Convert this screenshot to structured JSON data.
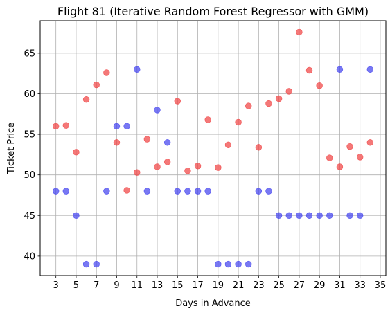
{
  "chart_data": {
    "type": "scatter",
    "title": "Flight 81 (Iterative Random Forest Regressor with GMM)",
    "xlabel": "Days in Advance",
    "ylabel": "Ticket Price",
    "xlim": [
      1.45,
      35.55
    ],
    "ylim": [
      37.6,
      69.0
    ],
    "xticks": [
      3,
      5,
      7,
      9,
      11,
      13,
      15,
      17,
      19,
      21,
      23,
      25,
      27,
      29,
      31,
      33,
      35
    ],
    "yticks": [
      40,
      45,
      50,
      55,
      60,
      65
    ],
    "grid": true,
    "series": [
      {
        "color": "#4444ee",
        "points": [
          [
            3,
            48
          ],
          [
            4,
            48
          ],
          [
            5,
            45
          ],
          [
            6,
            39
          ],
          [
            7,
            39
          ],
          [
            8,
            48
          ],
          [
            9,
            56
          ],
          [
            10,
            56
          ],
          [
            11,
            63
          ],
          [
            12,
            48
          ],
          [
            13,
            58
          ],
          [
            14,
            54
          ],
          [
            15,
            48
          ],
          [
            16,
            48
          ],
          [
            17,
            48
          ],
          [
            18,
            48
          ],
          [
            19,
            39
          ],
          [
            20,
            39
          ],
          [
            21,
            39
          ],
          [
            22,
            39
          ],
          [
            23,
            48
          ],
          [
            24,
            48
          ],
          [
            25,
            45
          ],
          [
            26,
            45
          ],
          [
            27,
            45
          ],
          [
            28,
            45
          ],
          [
            29,
            45
          ],
          [
            30,
            45
          ],
          [
            31,
            63
          ],
          [
            32,
            45
          ],
          [
            33,
            45
          ],
          [
            34,
            63
          ]
        ]
      },
      {
        "color": "#f04444",
        "points": [
          [
            3,
            56.0
          ],
          [
            4,
            56.1
          ],
          [
            5,
            52.8
          ],
          [
            6,
            59.3
          ],
          [
            7,
            61.1
          ],
          [
            8,
            62.6
          ],
          [
            9,
            54.0
          ],
          [
            10,
            48.1
          ],
          [
            11,
            50.3
          ],
          [
            12,
            54.4
          ],
          [
            13,
            51.0
          ],
          [
            14,
            51.6
          ],
          [
            15,
            59.1
          ],
          [
            16,
            50.5
          ],
          [
            17,
            51.1
          ],
          [
            18,
            56.8
          ],
          [
            19,
            50.9
          ],
          [
            20,
            53.7
          ],
          [
            21,
            56.5
          ],
          [
            22,
            58.5
          ],
          [
            23,
            53.4
          ],
          [
            24,
            58.8
          ],
          [
            25,
            59.4
          ],
          [
            26,
            60.3
          ],
          [
            27,
            67.6
          ],
          [
            28,
            62.9
          ],
          [
            29,
            61.0
          ],
          [
            30,
            52.1
          ],
          [
            31,
            51.0
          ],
          [
            32,
            53.5
          ],
          [
            33,
            52.2
          ],
          [
            34,
            54.0
          ]
        ]
      }
    ]
  }
}
